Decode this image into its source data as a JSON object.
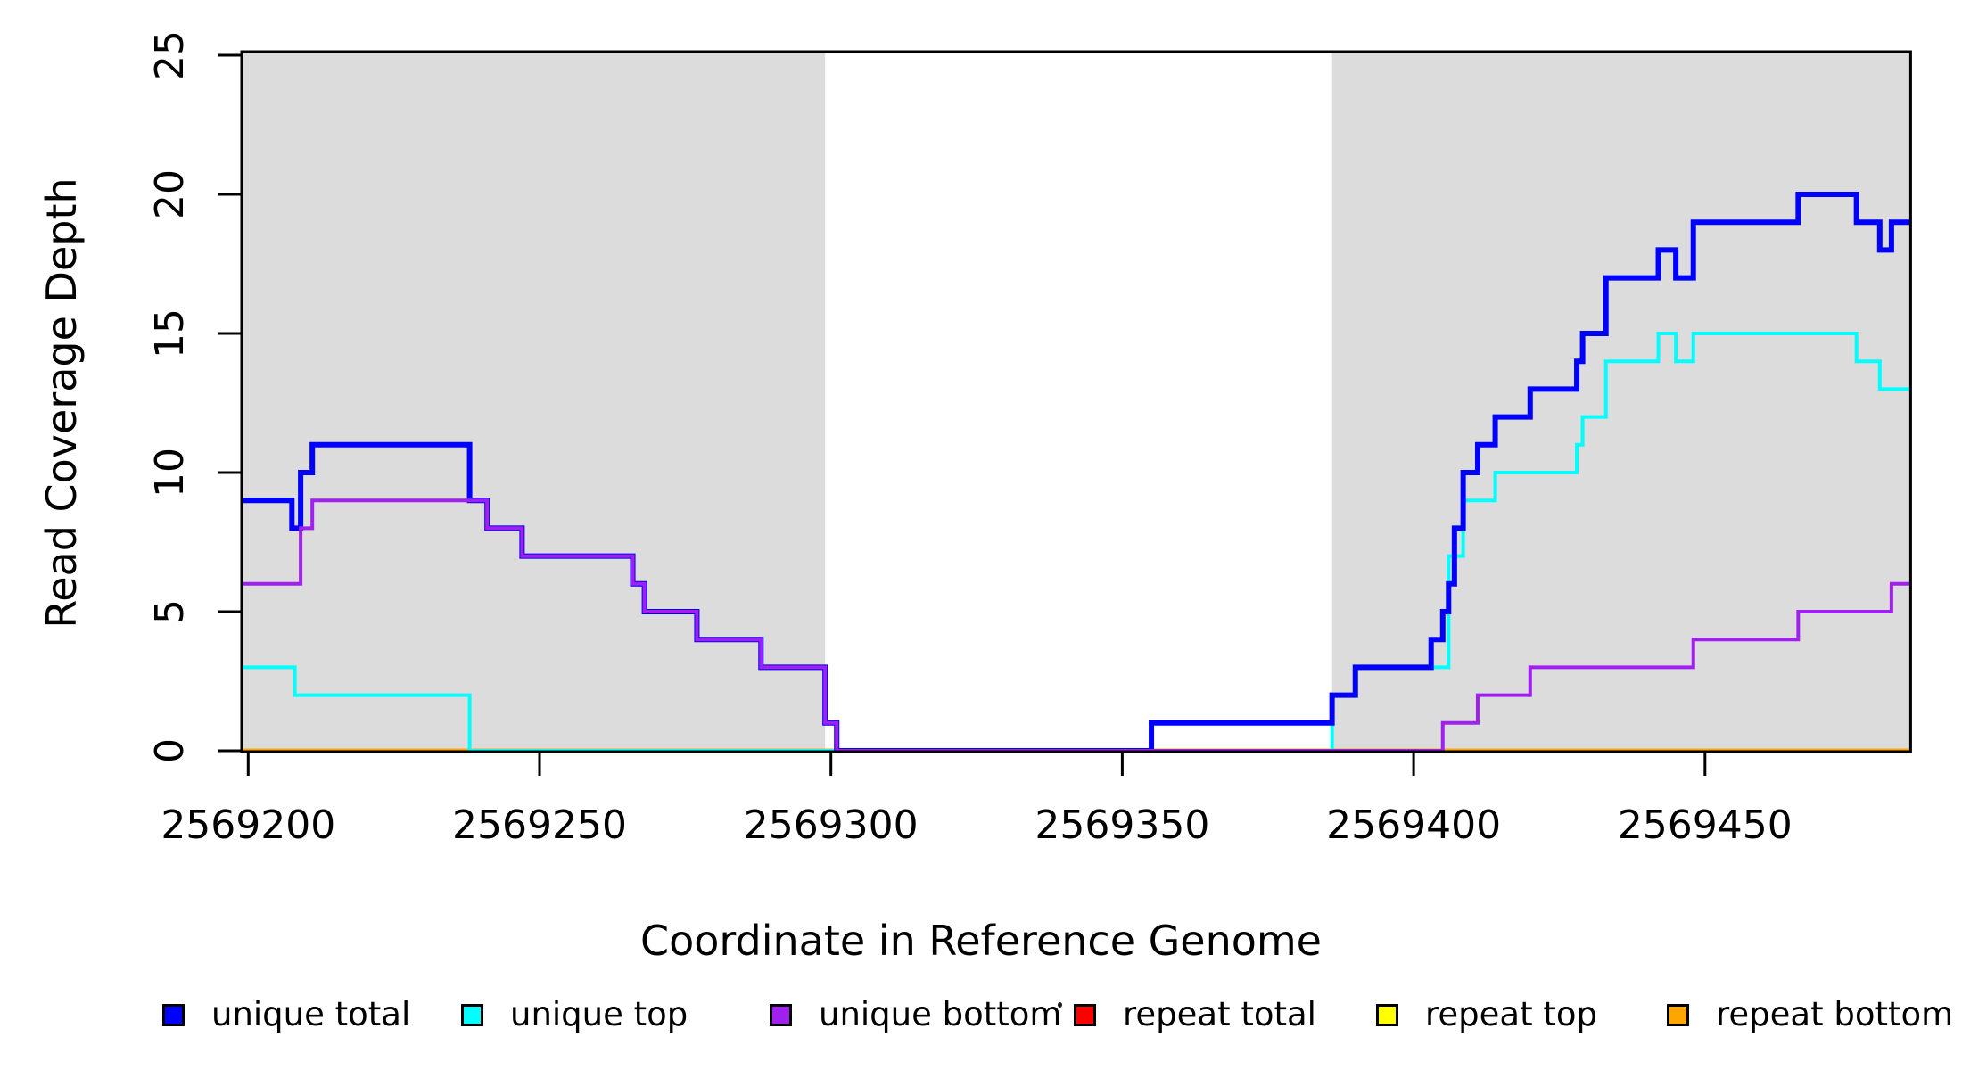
{
  "chart_data": {
    "type": "line",
    "subtype": "step-coverage",
    "title": "",
    "xlabel": "Coordinate in Reference Genome",
    "ylabel": "Read Coverage Depth",
    "xlim": [
      2569198.9,
      2569485.3
    ],
    "ylim": [
      0,
      25
    ],
    "grid": false,
    "x_ticks": [
      2569200,
      2569250,
      2569300,
      2569350,
      2569400,
      2569450
    ],
    "x_tick_labels": [
      "2569200",
      "2569250",
      "2569300",
      "2569350",
      "2569400",
      "2569450"
    ],
    "y_ticks": [
      0,
      5,
      10,
      15,
      20,
      25
    ],
    "y_tick_labels": [
      "0",
      "5",
      "10",
      "15",
      "20",
      "25"
    ],
    "shaded_regions": [
      {
        "name": "left-gray-region",
        "x0": 2569198.9,
        "x1": 2569299,
        "color": "#DCDCDC"
      },
      {
        "name": "right-gray-region",
        "x0": 2569386,
        "x1": 2569485.3,
        "color": "#DCDCDC"
      }
    ],
    "series": [
      {
        "name": "unique total",
        "color": "#0000FF",
        "line_width": 6,
        "steps": [
          [
            2569198.9,
            9
          ],
          [
            2569207.5,
            8
          ],
          [
            2569209,
            10
          ],
          [
            2569211,
            11
          ],
          [
            2569238,
            9
          ],
          [
            2569241,
            8
          ],
          [
            2569247,
            7
          ],
          [
            2569266,
            6
          ],
          [
            2569268,
            5
          ],
          [
            2569277,
            4
          ],
          [
            2569288,
            3
          ],
          [
            2569299,
            1
          ],
          [
            2569301,
            0
          ],
          [
            2569355,
            1
          ],
          [
            2569386,
            2
          ],
          [
            2569390,
            3
          ],
          [
            2569403,
            4
          ],
          [
            2569405,
            5
          ],
          [
            2569406,
            6
          ],
          [
            2569407,
            8
          ],
          [
            2569408.5,
            10
          ],
          [
            2569411,
            11
          ],
          [
            2569414,
            12
          ],
          [
            2569420,
            13
          ],
          [
            2569428,
            14
          ],
          [
            2569429,
            15
          ],
          [
            2569433,
            17
          ],
          [
            2569442,
            18
          ],
          [
            2569445,
            17
          ],
          [
            2569448,
            19
          ],
          [
            2569466,
            20
          ],
          [
            2569476,
            19
          ],
          [
            2569480,
            18
          ],
          [
            2569482,
            19
          ]
        ]
      },
      {
        "name": "unique top",
        "color": "#00FFFF",
        "line_width": 4,
        "steps": [
          [
            2569198.9,
            3
          ],
          [
            2569208,
            2
          ],
          [
            2569238,
            0
          ],
          [
            2569386,
            2
          ],
          [
            2569390,
            3
          ],
          [
            2569406,
            7
          ],
          [
            2569408.5,
            9
          ],
          [
            2569414,
            10
          ],
          [
            2569428,
            11
          ],
          [
            2569429,
            12
          ],
          [
            2569433,
            14
          ],
          [
            2569442,
            15
          ],
          [
            2569445,
            14
          ],
          [
            2569448,
            15
          ],
          [
            2569476,
            14
          ],
          [
            2569480,
            13
          ]
        ]
      },
      {
        "name": "unique bottom",
        "color": "#A020F0",
        "line_width": 4,
        "steps": [
          [
            2569198.9,
            6
          ],
          [
            2569209,
            8
          ],
          [
            2569211,
            9
          ],
          [
            2569241,
            8
          ],
          [
            2569247,
            7
          ],
          [
            2569266,
            6
          ],
          [
            2569268,
            5
          ],
          [
            2569277,
            4
          ],
          [
            2569288,
            3
          ],
          [
            2569299,
            1
          ],
          [
            2569301,
            0
          ],
          [
            2569405,
            1
          ],
          [
            2569411,
            2
          ],
          [
            2569420,
            3
          ],
          [
            2569448,
            4
          ],
          [
            2569466,
            5
          ],
          [
            2569482,
            6
          ]
        ]
      },
      {
        "name": "repeat total",
        "color": "#FF0000",
        "line_width": 3.5,
        "steps": [
          [
            2569198.9,
            0
          ]
        ]
      },
      {
        "name": "repeat top",
        "color": "#FFFF00",
        "line_width": 3.5,
        "steps": [
          [
            2569198.9,
            0
          ]
        ]
      },
      {
        "name": "repeat bottom",
        "color": "#FFA500",
        "line_width": 5,
        "steps": [
          [
            2569198.9,
            0
          ]
        ]
      }
    ],
    "draw_order": [
      3,
      4,
      5,
      1,
      0,
      2
    ],
    "legend": {
      "position": "bottom",
      "items": [
        {
          "label": "unique total",
          "color": "#0000FF"
        },
        {
          "label": "unique top",
          "color": "#00FFFF"
        },
        {
          "label": "unique bottom",
          "color": "#A020F0"
        },
        {
          "label": "repeat total",
          "color": "#FF0000"
        },
        {
          "label": "repeat top",
          "color": "#FFFF00"
        },
        {
          "label": "repeat bottom",
          "color": "#FFA500"
        }
      ],
      "stray_dot": "small-black-dot"
    },
    "axis_color": "#000000",
    "background_color": "#FFFFFF"
  }
}
